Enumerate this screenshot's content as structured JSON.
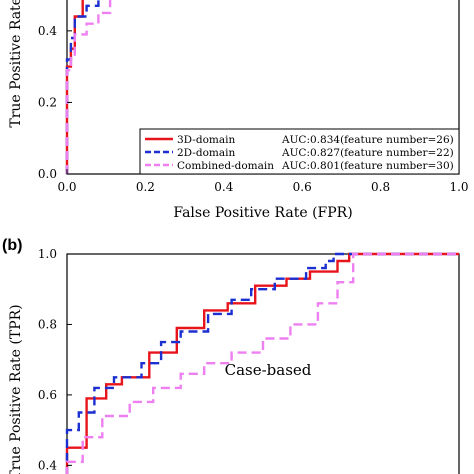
{
  "panel_b_label": "(b)",
  "chart_data": [
    {
      "type": "line",
      "panel": "a",
      "title": "",
      "xlabel": "False Positive Rate (FPR)",
      "ylabel": "True Positive Rate (TPR)",
      "xlim": [
        0.0,
        1.0
      ],
      "ylim": [
        0.0,
        0.57
      ],
      "xticks": [
        0.0,
        0.2,
        0.4,
        0.6,
        0.8,
        1.0
      ],
      "xtick_labels": [
        "0.0",
        "0.2",
        "0.4",
        "0.6",
        "0.8",
        "1.0"
      ],
      "yticks": [
        0.0,
        0.2,
        0.4
      ],
      "ytick_labels": [
        "0.0",
        "0.2",
        "0.4"
      ],
      "legend_position": "bottom-right",
      "series": [
        {
          "name": "3D-domain",
          "auc_label": "AUC:0.834(feature number=26)",
          "color": "#e8141b",
          "dash": "solid",
          "x": [
            0.0,
            0.0,
            0.01,
            0.01,
            0.02,
            0.02,
            0.04,
            0.04,
            0.07,
            0.07,
            0.1,
            0.1,
            0.12,
            0.12
          ],
          "y": [
            0.0,
            0.3,
            0.3,
            0.35,
            0.35,
            0.44,
            0.44,
            0.49,
            0.49,
            0.52,
            0.52,
            0.55,
            0.55,
            0.57
          ]
        },
        {
          "name": "2D-domain",
          "auc_label": "AUC:0.827(feature number=22)",
          "color": "#1c2fd0",
          "dash": "dashed",
          "x": [
            0.0,
            0.0,
            0.01,
            0.01,
            0.02,
            0.02,
            0.05,
            0.05,
            0.08,
            0.08,
            0.1,
            0.1,
            0.13,
            0.13
          ],
          "y": [
            0.0,
            0.32,
            0.32,
            0.38,
            0.38,
            0.44,
            0.44,
            0.47,
            0.47,
            0.5,
            0.5,
            0.53,
            0.53,
            0.57
          ]
        },
        {
          "name": "Combined-domain",
          "auc_label": "AUC:0.801(feature number=30)",
          "color": "#ee7ff0",
          "dash": "dashed",
          "x": [
            0.0,
            0.0,
            0.01,
            0.01,
            0.02,
            0.02,
            0.05,
            0.05,
            0.08,
            0.08,
            0.11,
            0.11,
            0.13,
            0.13
          ],
          "y": [
            0.0,
            0.29,
            0.29,
            0.33,
            0.33,
            0.39,
            0.39,
            0.42,
            0.42,
            0.45,
            0.45,
            0.5,
            0.5,
            0.57
          ]
        }
      ]
    },
    {
      "type": "line",
      "panel": "b",
      "title": "",
      "annotation": "Case-based",
      "xlabel": "",
      "ylabel": "True Positive Rate (TPR)",
      "xlim": [
        0.0,
        1.0
      ],
      "ylim": [
        0.33,
        1.0
      ],
      "yticks": [
        0.4,
        0.6,
        0.8,
        1.0
      ],
      "ytick_labels": [
        "0.4",
        "0.6",
        "0.8",
        "1.0"
      ],
      "series": [
        {
          "name": "3D-domain",
          "color": "#e8141b",
          "dash": "solid",
          "x": [
            0.0,
            0.0,
            0.05,
            0.05,
            0.1,
            0.1,
            0.14,
            0.14,
            0.21,
            0.21,
            0.28,
            0.28,
            0.35,
            0.35,
            0.41,
            0.41,
            0.48,
            0.48,
            0.56,
            0.56,
            0.62,
            0.62,
            0.69,
            0.69,
            0.72,
            0.72,
            1.0
          ],
          "y": [
            0.33,
            0.45,
            0.45,
            0.59,
            0.59,
            0.63,
            0.63,
            0.65,
            0.65,
            0.72,
            0.72,
            0.79,
            0.79,
            0.84,
            0.84,
            0.86,
            0.86,
            0.91,
            0.91,
            0.93,
            0.93,
            0.95,
            0.95,
            0.98,
            0.98,
            1.0,
            1.0
          ]
        },
        {
          "name": "2D-domain",
          "color": "#1c2fd0",
          "dash": "dashed",
          "x": [
            0.0,
            0.0,
            0.03,
            0.03,
            0.07,
            0.07,
            0.12,
            0.12,
            0.19,
            0.19,
            0.24,
            0.24,
            0.29,
            0.29,
            0.36,
            0.36,
            0.42,
            0.42,
            0.47,
            0.47,
            0.53,
            0.53,
            0.61,
            0.61,
            0.66,
            0.66,
            0.68,
            0.68,
            1.0
          ],
          "y": [
            0.33,
            0.5,
            0.5,
            0.55,
            0.55,
            0.62,
            0.62,
            0.65,
            0.65,
            0.69,
            0.69,
            0.75,
            0.75,
            0.78,
            0.78,
            0.83,
            0.83,
            0.87,
            0.87,
            0.9,
            0.9,
            0.93,
            0.93,
            0.96,
            0.96,
            0.98,
            0.98,
            1.0,
            1.0
          ]
        },
        {
          "name": "Combined-domain",
          "color": "#ee7ff0",
          "dash": "dashed",
          "x": [
            0.0,
            0.0,
            0.04,
            0.04,
            0.09,
            0.09,
            0.16,
            0.16,
            0.22,
            0.22,
            0.29,
            0.29,
            0.35,
            0.35,
            0.42,
            0.42,
            0.5,
            0.5,
            0.57,
            0.57,
            0.64,
            0.64,
            0.69,
            0.69,
            0.73,
            0.73,
            1.0
          ],
          "y": [
            0.33,
            0.41,
            0.41,
            0.48,
            0.48,
            0.54,
            0.54,
            0.58,
            0.58,
            0.62,
            0.62,
            0.66,
            0.66,
            0.69,
            0.69,
            0.72,
            0.72,
            0.76,
            0.76,
            0.8,
            0.8,
            0.86,
            0.86,
            0.92,
            0.92,
            1.0,
            1.0
          ]
        }
      ]
    }
  ]
}
